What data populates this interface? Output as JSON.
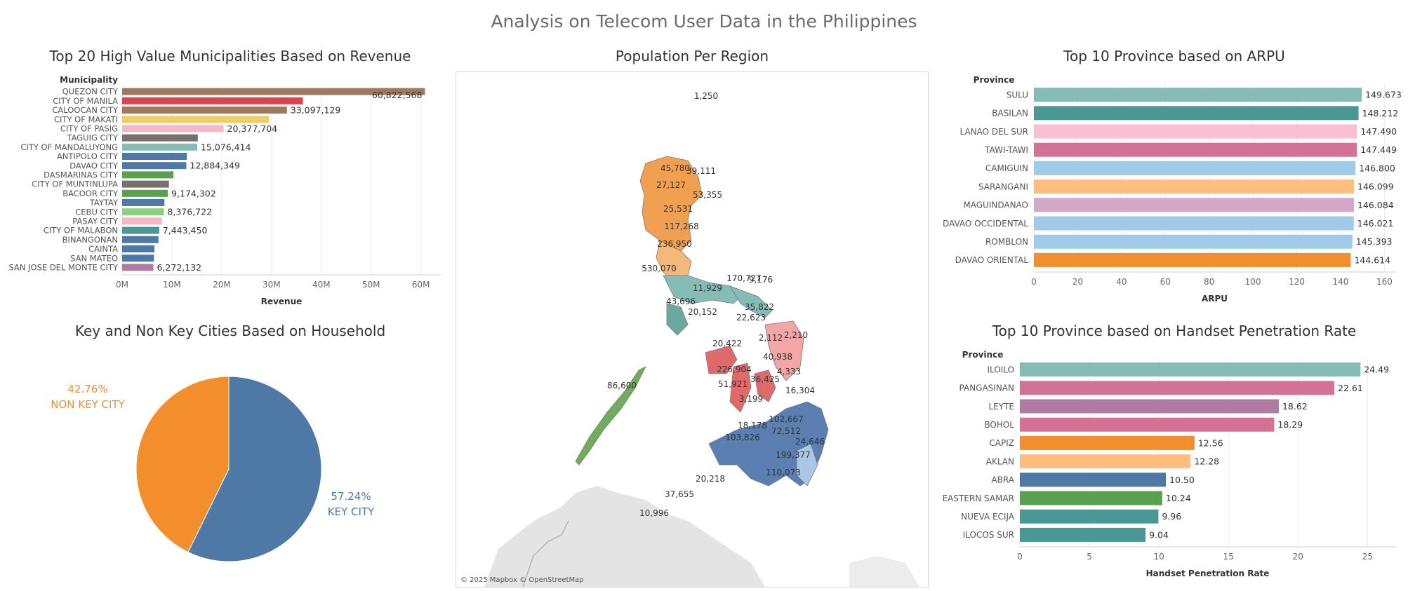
{
  "dashboard_title": "Analysis on Telecom User Data in the Philippines",
  "revenue_chart": {
    "title": "Top 20 High Value Municipalities Based on Revenue",
    "row_header": "Municipality",
    "xlabel": "Revenue",
    "chart_data": {
      "type": "bar",
      "orientation": "horizontal",
      "categories": [
        "QUEZON CITY",
        "CITY OF MANILA",
        "CALOOCAN CITY",
        "CITY OF MAKATI",
        "CITY OF PASIG",
        "TAGUIG CITY",
        "CITY OF MANDALUYONG",
        "ANTIPOLO CITY",
        "DAVAO CITY",
        "DASMARINAS CITY",
        "CITY OF MUNTINLUPA",
        "BACOOR CITY",
        "TAYTAY",
        "CEBU CITY",
        "PASAY CITY",
        "CITY OF MALABON",
        "BINANGONAN",
        "CAINTA",
        "SAN MATEO",
        "SAN JOSE DEL MONTE CITY"
      ],
      "values": [
        60822568,
        36300000,
        33097129,
        29500000,
        20377704,
        15200000,
        15076414,
        13000000,
        12884349,
        10300000,
        9400000,
        9174302,
        8500000,
        8376722,
        8000000,
        7443450,
        7300000,
        6500000,
        6400000,
        6272132
      ],
      "data_labels": [
        "60,822,568",
        "",
        "33,097,129",
        "",
        "20,377,704",
        "",
        "15,076,414",
        "",
        "12,884,349",
        "",
        "",
        "9,174,302",
        "",
        "8,376,722",
        "",
        "7,443,450",
        "",
        "",
        "",
        "6,272,132"
      ],
      "colors": [
        "#a0785e",
        "#d9454e",
        "#a0785e",
        "#f1ce63",
        "#f5b8c8",
        "#79706e",
        "#86bcb6",
        "#4e79a7",
        "#4e79a7",
        "#59a14f",
        "#79706e",
        "#59a14f",
        "#4e79a7",
        "#8cd17d",
        "#f5b8c8",
        "#499894",
        "#4e79a7",
        "#4e79a7",
        "#4e79a7",
        "#b07aa1"
      ],
      "xlim": [
        0,
        64000000
      ],
      "ticks": [
        0,
        10000000,
        20000000,
        30000000,
        40000000,
        50000000,
        60000000
      ],
      "tick_labels": [
        "0M",
        "10M",
        "20M",
        "30M",
        "40M",
        "50M",
        "60M"
      ]
    }
  },
  "household_chart": {
    "title": "Key and Non Key Cities Based on Household",
    "chart_data": {
      "type": "pie",
      "slices": [
        {
          "label": "KEY CITY",
          "value": 57.24,
          "pct_label": "57.24%",
          "color": "#4e79a7"
        },
        {
          "label": "NON KEY CITY",
          "value": 42.76,
          "pct_label": "42.76%",
          "color": "#f28e2b"
        }
      ]
    }
  },
  "map": {
    "title": "Population Per Region",
    "attribution": "© 2025 Mapbox © OpenStreetMap",
    "labels": [
      "1,250",
      "45,780",
      "39,111",
      "27,127",
      "53,355",
      "25,531",
      "117,268",
      "236,950",
      "530,070",
      "170,727",
      "9,176",
      "11,929",
      "43,696",
      "35,822",
      "20,152",
      "22,623",
      "2,112",
      "2,210",
      "20,422",
      "40,938",
      "226,904",
      "4,333",
      "36,425",
      "51,921",
      "3,199",
      "16,304",
      "102,667",
      "18,178",
      "72,512",
      "24,646",
      "103,826",
      "199,377",
      "110,073",
      "86,600",
      "20,218",
      "37,655",
      "10,996"
    ]
  },
  "arpu_chart": {
    "title": "Top 10 Province based on ARPU",
    "row_header": "Province",
    "xlabel": "ARPU",
    "chart_data": {
      "type": "bar",
      "orientation": "horizontal",
      "categories": [
        "SULU",
        "BASILAN",
        "LANAO DEL SUR",
        "TAWI-TAWI",
        "CAMIGUIN",
        "SARANGANI",
        "MAGUINDANAO",
        "DAVAO OCCIDENTAL",
        "ROMBLON",
        "DAVAO ORIENTAL"
      ],
      "values": [
        149.673,
        148.212,
        147.49,
        147.449,
        146.8,
        146.099,
        146.084,
        146.021,
        145.393,
        144.614
      ],
      "data_labels": [
        "149.673",
        "148.212",
        "147.490",
        "147.449",
        "146.800",
        "146.099",
        "146.084",
        "146.021",
        "145.393",
        "144.614"
      ],
      "colors": [
        "#86bcb6",
        "#499894",
        "#fabfd2",
        "#d37295",
        "#a0cbe8",
        "#ffbe7d",
        "#d4a6c8",
        "#a0cbe8",
        "#a0cbe8",
        "#f28e2b"
      ],
      "xlim": [
        0,
        165
      ],
      "ticks": [
        0,
        20,
        40,
        60,
        80,
        100,
        120,
        140,
        160
      ],
      "tick_labels": [
        "0",
        "20",
        "40",
        "60",
        "80",
        "100",
        "120",
        "140",
        "160"
      ]
    }
  },
  "handset_chart": {
    "title": "Top 10 Province based on Handset Penetration Rate",
    "row_header": "Province",
    "xlabel": "Handset Penetration Rate",
    "chart_data": {
      "type": "bar",
      "orientation": "horizontal",
      "categories": [
        "ILOILO",
        "PANGASINAN",
        "LEYTE",
        "BOHOL",
        "CAPIZ",
        "AKLAN",
        "ABRA",
        "EASTERN SAMAR",
        "NUEVA ECIJA",
        "ILOCOS SUR"
      ],
      "values": [
        24.49,
        22.61,
        18.62,
        18.29,
        12.56,
        12.28,
        10.5,
        10.24,
        9.96,
        9.04
      ],
      "data_labels": [
        "24.49",
        "22.61",
        "18.62",
        "18.29",
        "12.56",
        "12.28",
        "10.50",
        "10.24",
        "9.96",
        "9.04"
      ],
      "colors": [
        "#86bcb6",
        "#d37295",
        "#b07aa1",
        "#d37295",
        "#f28e2b",
        "#ffbe7d",
        "#4e79a7",
        "#59a14f",
        "#499894",
        "#499894"
      ],
      "xlim": [
        0,
        27
      ],
      "ticks": [
        0,
        5,
        10,
        15,
        20,
        25
      ],
      "tick_labels": [
        "0",
        "5",
        "10",
        "15",
        "20",
        "25"
      ]
    }
  }
}
